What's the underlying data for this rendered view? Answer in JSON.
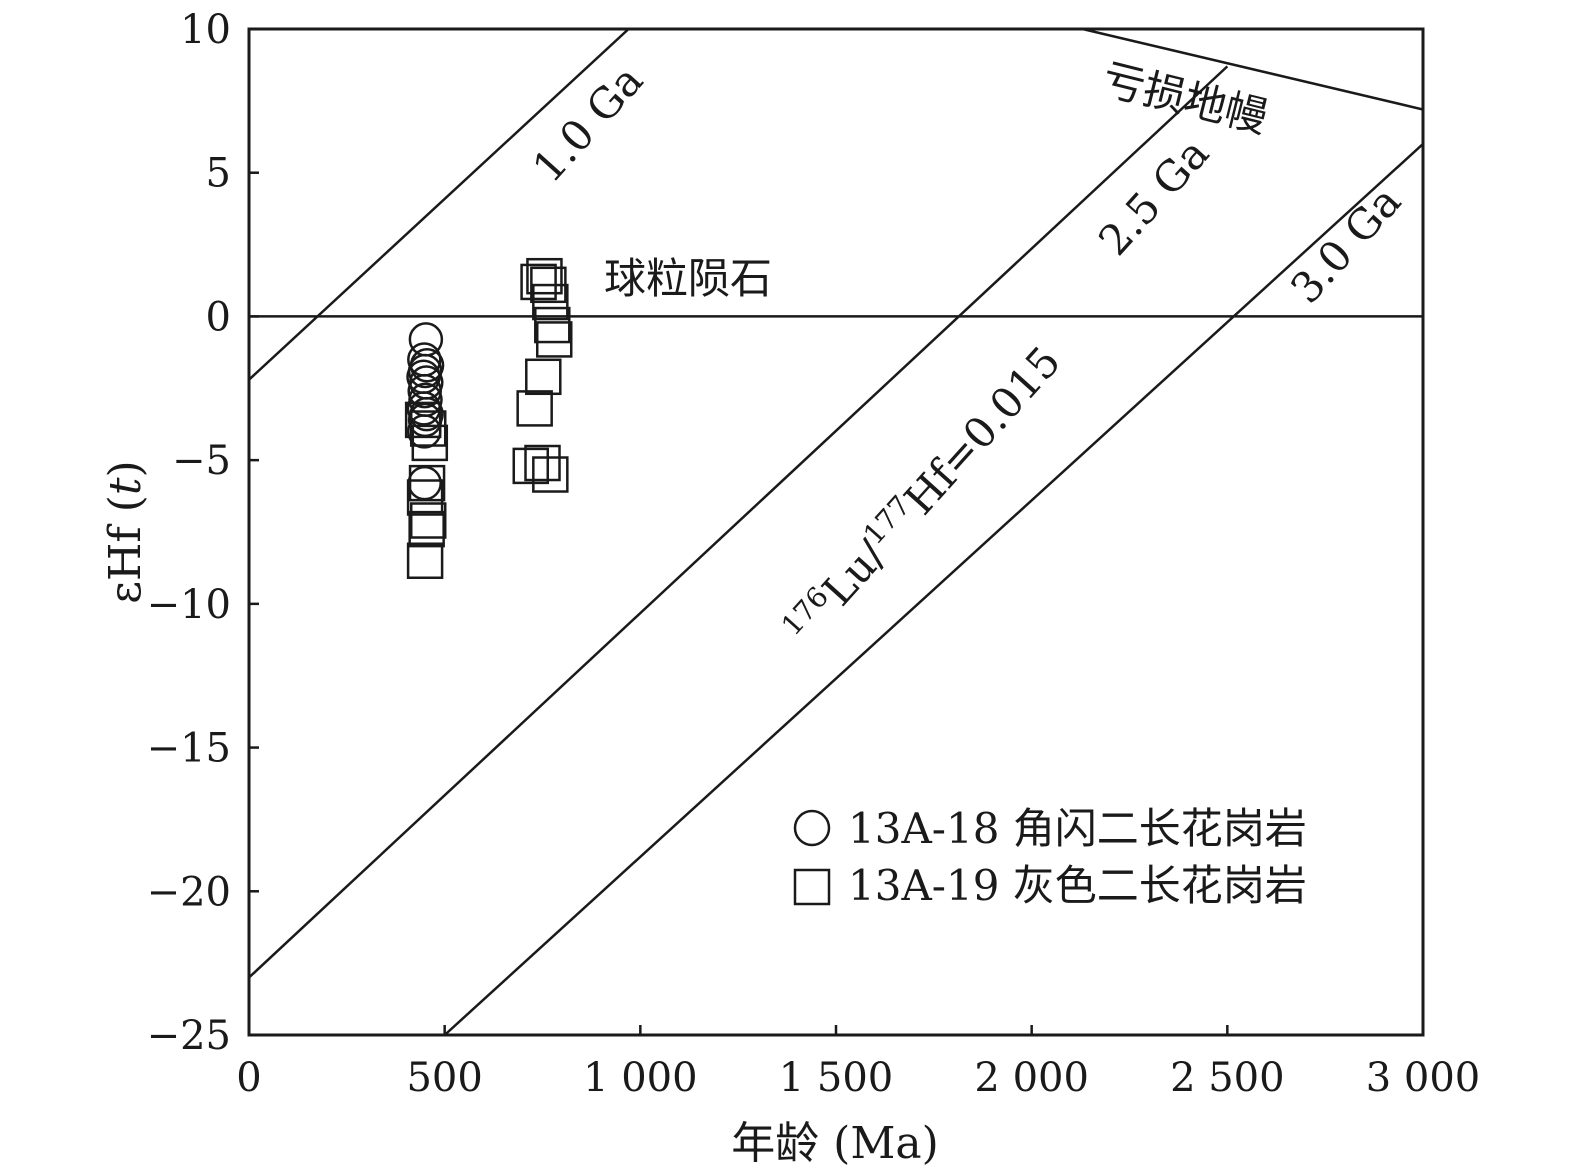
{
  "chart_data": {
    "type": "scatter",
    "xlabel": "年龄 (Ma)",
    "ylabel_prefix": "εHf (",
    "ylabel_var": "t",
    "ylabel_suffix": ")",
    "xlim": [
      0,
      3000
    ],
    "ylim": [
      -25,
      10
    ],
    "x_ticks": [
      {
        "value": 0,
        "label": "0"
      },
      {
        "value": 500,
        "label": "500"
      },
      {
        "value": 1000,
        "label": "1 000"
      },
      {
        "value": 1500,
        "label": "1 500"
      },
      {
        "value": 2000,
        "label": "2 000"
      },
      {
        "value": 2500,
        "label": "2 500"
      },
      {
        "value": 3000,
        "label": "3 000"
      }
    ],
    "y_ticks": [
      {
        "value": 10,
        "label": "10"
      },
      {
        "value": 5,
        "label": "5"
      },
      {
        "value": 0,
        "label": "0"
      },
      {
        "value": -5,
        "label": "−5"
      },
      {
        "value": -10,
        "label": "−10"
      },
      {
        "value": -15,
        "label": "−15"
      },
      {
        "value": -20,
        "label": "−20"
      },
      {
        "value": -25,
        "label": "−25"
      }
    ],
    "grid": false,
    "legend_position": "bottom-right",
    "series": [
      {
        "name": "13A-18 角闪二长花岗岩",
        "marker": "circle",
        "points": [
          [
            452,
            -0.8
          ],
          [
            448,
            -1.5
          ],
          [
            455,
            -1.7
          ],
          [
            450,
            -1.9
          ],
          [
            446,
            -2.1
          ],
          [
            453,
            -2.3
          ],
          [
            449,
            -2.6
          ],
          [
            451,
            -2.9
          ],
          [
            447,
            -3.2
          ],
          [
            454,
            -3.4
          ],
          [
            450,
            -3.6
          ],
          [
            448,
            -4.0
          ],
          [
            449,
            -5.8
          ]
        ]
      },
      {
        "name": "13A-19 灰色二长花岗岩",
        "marker": "square",
        "points": [
          [
            755,
            1.4
          ],
          [
            740,
            1.2
          ],
          [
            765,
            1.1
          ],
          [
            770,
            0.5
          ],
          [
            775,
            -0.3
          ],
          [
            780,
            -0.8
          ],
          [
            752,
            -2.1
          ],
          [
            730,
            -3.2
          ],
          [
            445,
            -3.6
          ],
          [
            458,
            -3.9
          ],
          [
            462,
            -4.4
          ],
          [
            455,
            -5.8
          ],
          [
            450,
            -6.3
          ],
          [
            458,
            -7.1
          ],
          [
            454,
            -7.4
          ],
          [
            450,
            -8.5
          ],
          [
            720,
            -5.2
          ],
          [
            750,
            -5.1
          ],
          [
            770,
            -5.5
          ]
        ]
      }
    ],
    "reference_lines": [
      {
        "name": "1.0 Ga",
        "points": [
          [
            0,
            -2.2
          ],
          [
            970,
            10
          ]
        ]
      },
      {
        "name": "2.5 Ga",
        "points": [
          [
            0,
            -23.0
          ],
          [
            2500,
            8.7
          ]
        ]
      },
      {
        "name": "3.0 Ga",
        "points": [
          [
            500,
            -25.0
          ],
          [
            3000,
            6.0
          ]
        ]
      },
      {
        "name": "亏损地幔",
        "points": [
          [
            2130,
            10.0
          ],
          [
            3000,
            7.2
          ]
        ]
      },
      {
        "name": "球粒陨石",
        "points": [
          [
            0,
            0
          ],
          [
            3000,
            0
          ]
        ]
      }
    ],
    "annotations": {
      "ga_1_0": "1.0 Ga",
      "ga_2_5": "2.5 Ga",
      "ga_3_0": "3.0 Ga",
      "depleted_mantle": "亏损地幔",
      "chondrite": "球粒陨石",
      "lu_hf_sup1": "176",
      "lu_hf_lu": "Lu/",
      "lu_hf_sup2": "177",
      "lu_hf_rest": "Hf=0.015"
    }
  }
}
